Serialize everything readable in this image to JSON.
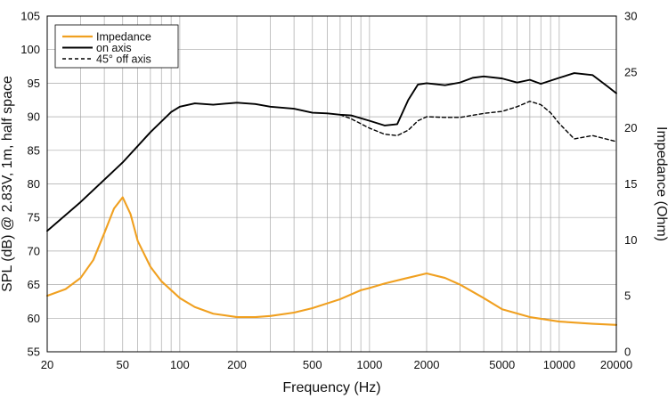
{
  "chart_data": {
    "type": "line",
    "xscale": "log",
    "grid": true,
    "legend_position": "top-left",
    "xlabel": "Frequency (Hz)",
    "ylabel": "SPL (dB) @ 2.83V, 1m, half space",
    "y2label": "Impedance (Ohm)",
    "xlim": [
      20,
      20000
    ],
    "ylim": [
      55,
      105
    ],
    "y2lim": [
      0,
      30
    ],
    "x_ticks": [
      20,
      50,
      100,
      200,
      500,
      1000,
      2000,
      5000,
      10000,
      20000
    ],
    "y_ticks": [
      55,
      60,
      65,
      70,
      75,
      80,
      85,
      90,
      95,
      100,
      105
    ],
    "y2_ticks": [
      0,
      5,
      10,
      15,
      20,
      25,
      30
    ],
    "series": [
      {
        "name": "Impedance",
        "axis": "right",
        "color": "#f0a020",
        "dash": "",
        "x": [
          20,
          25,
          30,
          35,
          40,
          45,
          50,
          55,
          60,
          70,
          80,
          100,
          120,
          150,
          200,
          250,
          300,
          400,
          500,
          700,
          900,
          1000,
          1200,
          1500,
          2000,
          2500,
          3000,
          4000,
          5000,
          7000,
          10000,
          15000,
          20000
        ],
        "values": [
          5.0,
          5.6,
          6.6,
          8.2,
          10.6,
          12.8,
          13.8,
          12.3,
          9.9,
          7.6,
          6.3,
          4.8,
          4.0,
          3.4,
          3.1,
          3.1,
          3.2,
          3.5,
          3.9,
          4.7,
          5.5,
          5.7,
          6.1,
          6.5,
          7.0,
          6.6,
          6.0,
          4.8,
          3.8,
          3.1,
          2.7,
          2.5,
          2.4
        ]
      },
      {
        "name": "on axis",
        "axis": "left",
        "color": "#000000",
        "dash": "",
        "x": [
          20,
          30,
          50,
          70,
          90,
          100,
          120,
          150,
          200,
          250,
          300,
          400,
          500,
          600,
          700,
          800,
          1000,
          1200,
          1400,
          1600,
          1800,
          2000,
          2500,
          3000,
          3500,
          4000,
          5000,
          6000,
          7000,
          8000,
          10000,
          12000,
          15000,
          18000,
          20000
        ],
        "values": [
          73,
          77.3,
          83.2,
          87.7,
          90.7,
          91.5,
          92.0,
          91.8,
          92.1,
          91.9,
          91.5,
          91.2,
          90.6,
          90.5,
          90.3,
          90.2,
          89.4,
          88.7,
          88.9,
          92.5,
          94.8,
          95.0,
          94.7,
          95.1,
          95.8,
          96.0,
          95.7,
          95.1,
          95.5,
          94.9,
          95.8,
          96.5,
          96.2,
          94.5,
          93.5
        ]
      },
      {
        "name": "45° off axis",
        "axis": "left",
        "color": "#000000",
        "dash": "4,3",
        "x": [
          700,
          800,
          1000,
          1200,
          1400,
          1600,
          1800,
          2000,
          2500,
          3000,
          4000,
          5000,
          6000,
          7000,
          8000,
          9000,
          10000,
          12000,
          15000,
          20000
        ],
        "values": [
          90.3,
          89.7,
          88.3,
          87.4,
          87.2,
          88.0,
          89.4,
          90.0,
          89.9,
          89.9,
          90.5,
          90.8,
          91.5,
          92.3,
          91.8,
          90.6,
          89.0,
          86.7,
          87.2,
          86.3
        ]
      }
    ]
  }
}
